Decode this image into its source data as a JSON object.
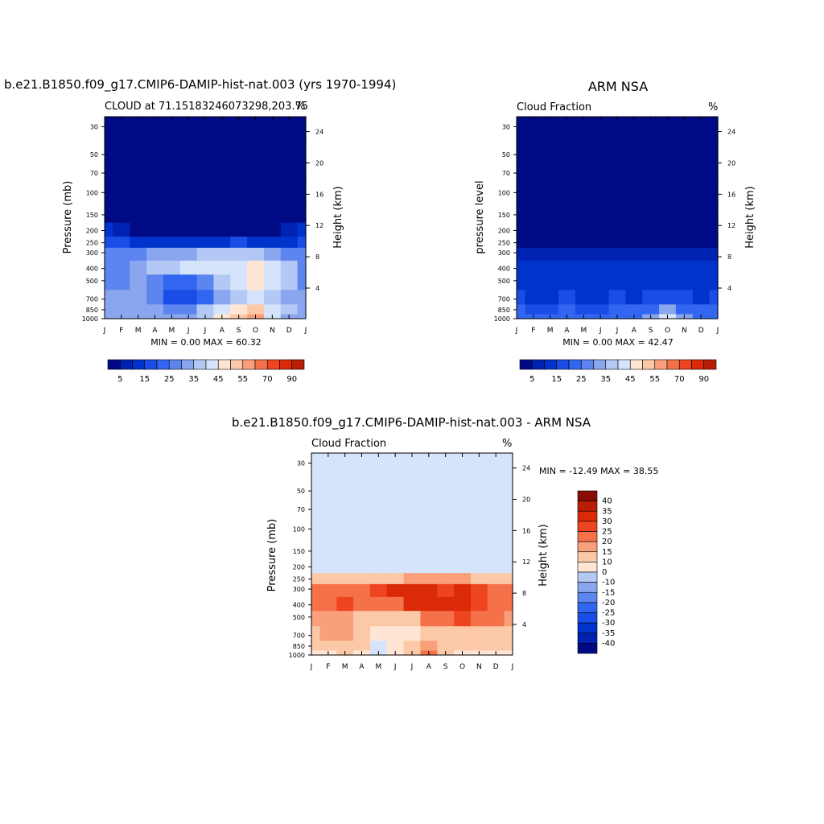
{
  "panels": {
    "model": {
      "title": "b.e21.B1850.f09_g17.CMIP6-DAMIP-hist-nat.003 (yrs 1970-1994)",
      "left_label": "CLOUD at 71.15183246073298,203.75",
      "units": "%",
      "ylabel": "Pressure (mb)",
      "right_ylabel": "Height (km)",
      "minmax": "MIN =   0.00 MAX =  60.32"
    },
    "obs": {
      "title": "ARM NSA",
      "left_label": "Cloud Fraction",
      "units": "%",
      "ylabel": "pressure level",
      "right_ylabel": "Height (km)",
      "minmax": "MIN =   0.00 MAX =  42.47"
    },
    "diff": {
      "title": "b.e21.B1850.f09_g17.CMIP6-DAMIP-hist-nat.003 - ARM NSA",
      "left_label": "Cloud Fraction",
      "units": "%",
      "ylabel": "Pressure (mb)",
      "right_ylabel": "Height (km)",
      "minmax": "MIN = -12.49 MAX =  38.55"
    }
  },
  "colors": {
    "abs_scale": [
      "#000a85",
      "#0022b0",
      "#0033cc",
      "#1a4de6",
      "#3366f0",
      "#5c85f0",
      "#8aa6ee",
      "#b3c8f5",
      "#d6e4fb",
      "#ffe6d4",
      "#fcc9a8",
      "#f9a07a",
      "#f5714a",
      "#ee4420",
      "#db2a08",
      "#b81e06",
      "#8a0d05"
    ],
    "diff_scale": [
      "#000a85",
      "#0022b0",
      "#0033cc",
      "#1a4de6",
      "#3366f0",
      "#5c85f0",
      "#8aa6ee",
      "#b3c8f5",
      "#d6e4fb",
      "#ffe6d4",
      "#fcc9a8",
      "#f9a07a",
      "#f5714a",
      "#ee4420",
      "#db2a08",
      "#b81e06",
      "#8a0d05"
    ]
  },
  "chart_data": [
    {
      "type": "heatmap",
      "title": "b.e21.B1850.f09_g17.CMIP6-DAMIP-hist-nat.003 (yrs 1970-1994)",
      "subtitle": "CLOUD at 71.15183246073298,203.75",
      "xlabel": "",
      "ylabel": "Pressure (mb)",
      "x": [
        "J",
        "F",
        "M",
        "A",
        "M",
        "J",
        "J",
        "A",
        "S",
        "O",
        "N",
        "D",
        "J"
      ],
      "y": [
        30,
        50,
        70,
        100,
        150,
        200,
        250,
        300,
        400,
        500,
        700,
        850,
        1000
      ],
      "right_axis": {
        "label": "Height (km)",
        "ticks": [
          24,
          20,
          16,
          12,
          8,
          4
        ]
      },
      "ylog": true,
      "ylim": [
        1000,
        25
      ],
      "values": [
        [
          0,
          0,
          0,
          0,
          0,
          0,
          0,
          0,
          0,
          0,
          0,
          0,
          0
        ],
        [
          0,
          0,
          0,
          0,
          0,
          0,
          0,
          0,
          0,
          0,
          0,
          0,
          0
        ],
        [
          0,
          0,
          0,
          0,
          0,
          0,
          0,
          0,
          0,
          0,
          0,
          0,
          0
        ],
        [
          0,
          0,
          0,
          0,
          0,
          0,
          0,
          0,
          0,
          0,
          0,
          0,
          0
        ],
        [
          0,
          0,
          0,
          0,
          0,
          0,
          0,
          0,
          0,
          0,
          0,
          0,
          0
        ],
        [
          10,
          5,
          0,
          0,
          0,
          0,
          0,
          0,
          0,
          0,
          0,
          5,
          10
        ],
        [
          18,
          15,
          12,
          10,
          10,
          12,
          14,
          14,
          15,
          14,
          12,
          14,
          18
        ],
        [
          25,
          26,
          28,
          30,
          32,
          34,
          36,
          36,
          36,
          35,
          30,
          28,
          25
        ],
        [
          28,
          28,
          30,
          35,
          38,
          40,
          40,
          40,
          40,
          46,
          40,
          36,
          28
        ],
        [
          28,
          28,
          30,
          28,
          22,
          20,
          28,
          36,
          40,
          46,
          40,
          36,
          28
        ],
        [
          30,
          32,
          32,
          26,
          18,
          16,
          22,
          30,
          38,
          40,
          38,
          34,
          30
        ],
        [
          30,
          32,
          34,
          30,
          26,
          28,
          36,
          42,
          48,
          52,
          44,
          36,
          30
        ],
        [
          30,
          30,
          32,
          30,
          30,
          30,
          38,
          45,
          50,
          55,
          40,
          34,
          30
        ]
      ],
      "colorbar": {
        "labels": [
          "5",
          "15",
          "25",
          "35",
          "45",
          "55",
          "70",
          "90"
        ]
      },
      "min": 0.0,
      "max": 60.32
    },
    {
      "type": "heatmap",
      "title": "ARM NSA",
      "subtitle": "Cloud Fraction",
      "xlabel": "",
      "ylabel": "pressure level",
      "x": [
        "J",
        "F",
        "M",
        "A",
        "M",
        "J",
        "J",
        "A",
        "S",
        "O",
        "N",
        "D",
        "J"
      ],
      "y": [
        30,
        50,
        70,
        100,
        150,
        200,
        250,
        300,
        400,
        500,
        700,
        850,
        1000
      ],
      "right_axis": {
        "label": "Height (km)",
        "ticks": [
          24,
          20,
          16,
          12,
          8,
          4
        ]
      },
      "ylog": true,
      "ylim": [
        1000,
        25
      ],
      "values": [
        [
          0,
          0,
          0,
          0,
          0,
          0,
          0,
          0,
          0,
          0,
          0,
          0,
          0
        ],
        [
          0,
          0,
          0,
          0,
          0,
          0,
          0,
          0,
          0,
          0,
          0,
          0,
          0
        ],
        [
          0,
          0,
          0,
          0,
          0,
          0,
          0,
          0,
          0,
          0,
          0,
          0,
          0
        ],
        [
          0,
          0,
          0,
          0,
          0,
          0,
          0,
          0,
          0,
          0,
          0,
          0,
          0
        ],
        [
          0,
          0,
          0,
          0,
          0,
          0,
          0,
          0,
          0,
          0,
          0,
          0,
          0
        ],
        [
          0,
          0,
          0,
          0,
          0,
          0,
          0,
          0,
          0,
          0,
          0,
          0,
          0
        ],
        [
          3,
          3,
          2,
          2,
          2,
          2,
          3,
          3,
          3,
          3,
          3,
          3,
          3
        ],
        [
          6,
          6,
          5,
          5,
          5,
          6,
          6,
          6,
          6,
          6,
          6,
          6,
          6
        ],
        [
          10,
          10,
          10,
          10,
          10,
          10,
          10,
          10,
          10,
          10,
          10,
          10,
          10
        ],
        [
          12,
          14,
          12,
          14,
          13,
          12,
          14,
          12,
          14,
          14,
          12,
          12,
          12
        ],
        [
          16,
          14,
          14,
          16,
          14,
          12,
          16,
          14,
          16,
          18,
          16,
          14,
          16
        ],
        [
          20,
          18,
          18,
          20,
          18,
          16,
          20,
          20,
          22,
          30,
          22,
          20,
          20
        ],
        [
          22,
          20,
          20,
          22,
          20,
          22,
          22,
          24,
          30,
          42,
          30,
          24,
          22
        ]
      ],
      "colorbar": {
        "labels": [
          "5",
          "15",
          "25",
          "35",
          "45",
          "55",
          "70",
          "90"
        ]
      },
      "min": 0.0,
      "max": 42.47
    },
    {
      "type": "heatmap",
      "title": "b.e21.B1850.f09_g17.CMIP6-DAMIP-hist-nat.003 - ARM NSA",
      "subtitle": "Cloud Fraction",
      "xlabel": "",
      "ylabel": "Pressure (mb)",
      "x": [
        "J",
        "F",
        "M",
        "A",
        "M",
        "J",
        "J",
        "A",
        "S",
        "O",
        "N",
        "D",
        "J"
      ],
      "y": [
        30,
        50,
        70,
        100,
        150,
        200,
        250,
        300,
        400,
        500,
        700,
        850,
        1000
      ],
      "right_axis": {
        "label": "Height (km)",
        "ticks": [
          24,
          20,
          16,
          12,
          8,
          4
        ]
      },
      "ylog": true,
      "ylim": [
        1000,
        25
      ],
      "values": [
        [
          2,
          2,
          2,
          2,
          2,
          2,
          2,
          2,
          2,
          2,
          2,
          2,
          2
        ],
        [
          -3,
          2,
          2,
          2,
          2,
          2,
          2,
          -3,
          2,
          2,
          2,
          -3,
          -3
        ],
        [
          -3,
          -3,
          2,
          2,
          2,
          2,
          2,
          2,
          -3,
          2,
          -3,
          -3,
          -3
        ],
        [
          -3,
          -3,
          -3,
          2,
          2,
          -3,
          -3,
          2,
          -3,
          -3,
          -3,
          -3,
          -3
        ],
        [
          2,
          2,
          2,
          2,
          2,
          -3,
          2,
          -3,
          2,
          2,
          2,
          2,
          2
        ],
        [
          4,
          4,
          4,
          4,
          4,
          4,
          4,
          4,
          4,
          4,
          4,
          4,
          4
        ],
        [
          14,
          12,
          10,
          10,
          12,
          14,
          16,
          16,
          16,
          16,
          14,
          12,
          14
        ],
        [
          24,
          24,
          22,
          24,
          26,
          30,
          30,
          30,
          28,
          30,
          26,
          24,
          24
        ],
        [
          22,
          24,
          26,
          24,
          22,
          24,
          30,
          32,
          30,
          34,
          28,
          24,
          22
        ],
        [
          18,
          18,
          16,
          14,
          12,
          10,
          14,
          22,
          24,
          28,
          24,
          20,
          18
        ],
        [
          14,
          16,
          16,
          10,
          6,
          6,
          6,
          10,
          14,
          14,
          14,
          14,
          14
        ],
        [
          10,
          12,
          14,
          10,
          4,
          6,
          10,
          16,
          14,
          10,
          12,
          10,
          10
        ],
        [
          8,
          8,
          10,
          8,
          4,
          6,
          14,
          20,
          12,
          6,
          8,
          8,
          8
        ]
      ],
      "colorbar": {
        "labels": [
          "40",
          "35",
          "30",
          "25",
          "20",
          "15",
          "10",
          "0",
          "-10",
          "-15",
          "-20",
          "-25",
          "-30",
          "-35",
          "-40"
        ]
      },
      "min": -12.49,
      "max": 38.55
    }
  ]
}
